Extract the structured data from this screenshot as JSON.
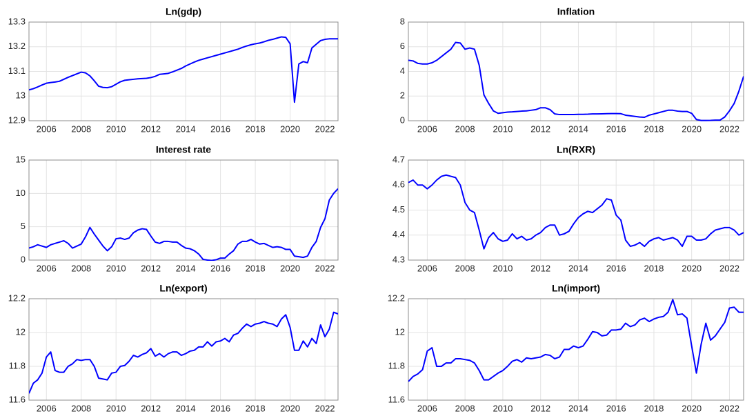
{
  "chart_data": [
    {
      "type": "line",
      "title": "Ln(gdp)",
      "x": [
        2005,
        2005.25,
        2005.5,
        2005.75,
        2006,
        2006.25,
        2006.5,
        2006.75,
        2007,
        2007.25,
        2007.5,
        2007.75,
        2008,
        2008.25,
        2008.5,
        2008.75,
        2009,
        2009.25,
        2009.5,
        2009.75,
        2010,
        2010.25,
        2010.5,
        2010.75,
        2011,
        2011.25,
        2011.5,
        2011.75,
        2012,
        2012.25,
        2012.5,
        2012.75,
        2013,
        2013.25,
        2013.5,
        2013.75,
        2014,
        2014.25,
        2014.5,
        2014.75,
        2015,
        2015.25,
        2015.5,
        2015.75,
        2016,
        2016.25,
        2016.5,
        2016.75,
        2017,
        2017.25,
        2017.5,
        2017.75,
        2018,
        2018.25,
        2018.5,
        2018.75,
        2019,
        2019.25,
        2019.5,
        2019.75,
        2020,
        2020.25,
        2020.5,
        2020.75,
        2021,
        2021.25,
        2021.5,
        2021.75,
        2022,
        2022.25,
        2022.5,
        2022.75
      ],
      "series": [
        {
          "color": "#0000ff",
          "values": [
            13.025,
            13.03,
            13.037,
            13.045,
            13.052,
            13.055,
            13.057,
            13.06,
            13.068,
            13.076,
            13.083,
            13.09,
            13.097,
            13.094,
            13.082,
            13.062,
            13.04,
            13.035,
            13.034,
            13.038,
            13.048,
            13.058,
            13.064,
            13.066,
            13.068,
            13.07,
            13.071,
            13.072,
            13.075,
            13.08,
            13.088,
            13.09,
            13.092,
            13.098,
            13.105,
            13.112,
            13.122,
            13.13,
            13.138,
            13.145,
            13.15,
            13.155,
            13.16,
            13.165,
            13.17,
            13.175,
            13.18,
            13.185,
            13.19,
            13.197,
            13.203,
            13.208,
            13.212,
            13.215,
            13.22,
            13.226,
            13.23,
            13.235,
            13.24,
            13.238,
            13.212,
            12.975,
            13.13,
            13.14,
            13.135,
            13.195,
            13.21,
            13.225,
            13.23,
            13.232,
            13.232,
            13.232
          ]
        }
      ],
      "xlim": [
        2005,
        2022.75
      ],
      "xticks": [
        2006,
        2008,
        2010,
        2012,
        2014,
        2016,
        2018,
        2020,
        2022
      ],
      "ylim": [
        12.9,
        13.3
      ],
      "yticks": [
        12.9,
        13,
        13.1,
        13.2,
        13.3
      ],
      "grid": true
    },
    {
      "type": "line",
      "title": "Inflation",
      "x": [
        2005,
        2005.25,
        2005.5,
        2005.75,
        2006,
        2006.25,
        2006.5,
        2006.75,
        2007,
        2007.25,
        2007.5,
        2007.75,
        2008,
        2008.25,
        2008.5,
        2008.75,
        2009,
        2009.25,
        2009.5,
        2009.75,
        2010,
        2010.25,
        2010.5,
        2010.75,
        2011,
        2011.25,
        2011.5,
        2011.75,
        2012,
        2012.25,
        2012.5,
        2012.75,
        2013,
        2013.25,
        2013.5,
        2013.75,
        2014,
        2014.25,
        2014.5,
        2014.75,
        2015,
        2015.25,
        2015.5,
        2015.75,
        2016,
        2016.25,
        2016.5,
        2016.75,
        2017,
        2017.25,
        2017.5,
        2017.75,
        2018,
        2018.25,
        2018.5,
        2018.75,
        2019,
        2019.25,
        2019.5,
        2019.75,
        2020,
        2020.25,
        2020.5,
        2020.75,
        2021,
        2021.25,
        2021.5,
        2021.75,
        2022,
        2022.25,
        2022.5,
        2022.75
      ],
      "series": [
        {
          "color": "#0000ff",
          "values": [
            4.9,
            4.85,
            4.65,
            4.6,
            4.6,
            4.7,
            4.9,
            5.2,
            5.5,
            5.8,
            6.35,
            6.3,
            5.8,
            5.9,
            5.8,
            4.5,
            2.1,
            1.4,
            0.8,
            0.6,
            0.65,
            0.7,
            0.72,
            0.75,
            0.78,
            0.8,
            0.85,
            0.9,
            1.05,
            1.05,
            0.9,
            0.55,
            0.5,
            0.5,
            0.5,
            0.5,
            0.52,
            0.52,
            0.53,
            0.55,
            0.55,
            0.56,
            0.57,
            0.58,
            0.58,
            0.57,
            0.45,
            0.4,
            0.35,
            0.3,
            0.28,
            0.45,
            0.55,
            0.65,
            0.75,
            0.85,
            0.85,
            0.78,
            0.75,
            0.75,
            0.6,
            0.1,
            0.02,
            0.02,
            0.03,
            0.05,
            0.05,
            0.3,
            0.8,
            1.4,
            2.4,
            3.6
          ]
        }
      ],
      "xlim": [
        2005,
        2022.75
      ],
      "xticks": [
        2006,
        2008,
        2010,
        2012,
        2014,
        2016,
        2018,
        2020,
        2022
      ],
      "ylim": [
        0,
        8
      ],
      "yticks": [
        0,
        2,
        4,
        6,
        8
      ],
      "grid": true
    },
    {
      "type": "line",
      "title": "Interest rate",
      "x": [
        2005,
        2005.25,
        2005.5,
        2005.75,
        2006,
        2006.25,
        2006.5,
        2006.75,
        2007,
        2007.25,
        2007.5,
        2007.75,
        2008,
        2008.25,
        2008.5,
        2008.75,
        2009,
        2009.25,
        2009.5,
        2009.75,
        2010,
        2010.25,
        2010.5,
        2010.75,
        2011,
        2011.25,
        2011.5,
        2011.75,
        2012,
        2012.25,
        2012.5,
        2012.75,
        2013,
        2013.25,
        2013.5,
        2013.75,
        2014,
        2014.25,
        2014.5,
        2014.75,
        2015,
        2015.25,
        2015.5,
        2015.75,
        2016,
        2016.25,
        2016.5,
        2016.75,
        2017,
        2017.25,
        2017.5,
        2017.75,
        2018,
        2018.25,
        2018.5,
        2018.75,
        2019,
        2019.25,
        2019.5,
        2019.75,
        2020,
        2020.25,
        2020.5,
        2020.75,
        2021,
        2021.25,
        2021.5,
        2021.75,
        2022,
        2022.25,
        2022.5,
        2022.75
      ],
      "series": [
        {
          "color": "#0000ff",
          "values": [
            1.8,
            2.0,
            2.3,
            2.1,
            1.9,
            2.3,
            2.5,
            2.7,
            2.9,
            2.5,
            1.8,
            2.1,
            2.4,
            3.5,
            4.9,
            3.9,
            3.0,
            2.1,
            1.4,
            2.0,
            3.2,
            3.3,
            3.1,
            3.3,
            4.1,
            4.5,
            4.7,
            4.6,
            3.6,
            2.7,
            2.5,
            2.8,
            2.8,
            2.7,
            2.7,
            2.2,
            1.8,
            1.7,
            1.4,
            0.9,
            0.1,
            0.0,
            -0.05,
            0.05,
            0.3,
            0.3,
            0.9,
            1.4,
            2.4,
            2.8,
            2.8,
            3.1,
            2.7,
            2.4,
            2.5,
            2.2,
            1.9,
            2.0,
            1.9,
            1.6,
            1.6,
            0.6,
            0.5,
            0.4,
            0.6,
            1.9,
            2.8,
            4.9,
            6.2,
            9.0,
            10.0,
            10.7
          ]
        }
      ],
      "xlim": [
        2005,
        2022.75
      ],
      "xticks": [
        2006,
        2008,
        2010,
        2012,
        2014,
        2016,
        2018,
        2020,
        2022
      ],
      "ylim": [
        0,
        15
      ],
      "yticks": [
        0,
        5,
        10,
        15
      ],
      "grid": true
    },
    {
      "type": "line",
      "title": "Ln(RXR)",
      "x": [
        2005,
        2005.25,
        2005.5,
        2005.75,
        2006,
        2006.25,
        2006.5,
        2006.75,
        2007,
        2007.25,
        2007.5,
        2007.75,
        2008,
        2008.25,
        2008.5,
        2008.75,
        2009,
        2009.25,
        2009.5,
        2009.75,
        2010,
        2010.25,
        2010.5,
        2010.75,
        2011,
        2011.25,
        2011.5,
        2011.75,
        2012,
        2012.25,
        2012.5,
        2012.75,
        2013,
        2013.25,
        2013.5,
        2013.75,
        2014,
        2014.25,
        2014.5,
        2014.75,
        2015,
        2015.25,
        2015.5,
        2015.75,
        2016,
        2016.25,
        2016.5,
        2016.75,
        2017,
        2017.25,
        2017.5,
        2017.75,
        2018,
        2018.25,
        2018.5,
        2018.75,
        2019,
        2019.25,
        2019.5,
        2019.75,
        2020,
        2020.25,
        2020.5,
        2020.75,
        2021,
        2021.25,
        2021.5,
        2021.75,
        2022,
        2022.25,
        2022.5,
        2022.75
      ],
      "series": [
        {
          "color": "#0000ff",
          "values": [
            4.61,
            4.62,
            4.6,
            4.6,
            4.585,
            4.6,
            4.62,
            4.635,
            4.64,
            4.635,
            4.63,
            4.6,
            4.53,
            4.5,
            4.49,
            4.42,
            4.345,
            4.39,
            4.41,
            4.385,
            4.375,
            4.38,
            4.405,
            4.385,
            4.395,
            4.38,
            4.385,
            4.4,
            4.41,
            4.43,
            4.44,
            4.44,
            4.4,
            4.405,
            4.415,
            4.445,
            4.47,
            4.485,
            4.495,
            4.49,
            4.505,
            4.52,
            4.545,
            4.54,
            4.48,
            4.46,
            4.38,
            4.355,
            4.36,
            4.37,
            4.355,
            4.375,
            4.385,
            4.39,
            4.38,
            4.385,
            4.39,
            4.38,
            4.355,
            4.395,
            4.395,
            4.38,
            4.38,
            4.385,
            4.405,
            4.42,
            4.425,
            4.43,
            4.43,
            4.42,
            4.4,
            4.41
          ]
        }
      ],
      "xlim": [
        2005,
        2022.75
      ],
      "xticks": [
        2006,
        2008,
        2010,
        2012,
        2014,
        2016,
        2018,
        2020,
        2022
      ],
      "ylim": [
        4.3,
        4.7
      ],
      "yticks": [
        4.3,
        4.4,
        4.5,
        4.6,
        4.7
      ],
      "grid": true
    },
    {
      "type": "line",
      "title": "Ln(export)",
      "x": [
        2005,
        2005.25,
        2005.5,
        2005.75,
        2006,
        2006.25,
        2006.5,
        2006.75,
        2007,
        2007.25,
        2007.5,
        2007.75,
        2008,
        2008.25,
        2008.5,
        2008.75,
        2009,
        2009.25,
        2009.5,
        2009.75,
        2010,
        2010.25,
        2010.5,
        2010.75,
        2011,
        2011.25,
        2011.5,
        2011.75,
        2012,
        2012.25,
        2012.5,
        2012.75,
        2013,
        2013.25,
        2013.5,
        2013.75,
        2014,
        2014.25,
        2014.5,
        2014.75,
        2015,
        2015.25,
        2015.5,
        2015.75,
        2016,
        2016.25,
        2016.5,
        2016.75,
        2017,
        2017.25,
        2017.5,
        2017.75,
        2018,
        2018.25,
        2018.5,
        2018.75,
        2019,
        2019.25,
        2019.5,
        2019.75,
        2020,
        2020.25,
        2020.5,
        2020.75,
        2021,
        2021.25,
        2021.5,
        2021.75,
        2022,
        2022.25,
        2022.5,
        2022.75
      ],
      "series": [
        {
          "color": "#0000ff",
          "values": [
            11.64,
            11.7,
            11.72,
            11.76,
            11.855,
            11.885,
            11.775,
            11.765,
            11.765,
            11.8,
            11.815,
            11.84,
            11.835,
            11.84,
            11.84,
            11.8,
            11.73,
            11.725,
            11.72,
            11.76,
            11.765,
            11.8,
            11.805,
            11.83,
            11.865,
            11.855,
            11.87,
            11.88,
            11.905,
            11.86,
            11.875,
            11.855,
            11.875,
            11.885,
            11.885,
            11.865,
            11.875,
            11.89,
            11.895,
            11.915,
            11.915,
            11.945,
            11.92,
            11.945,
            11.95,
            11.965,
            11.945,
            11.985,
            11.995,
            12.025,
            12.05,
            12.035,
            12.05,
            12.055,
            12.065,
            12.055,
            12.05,
            12.035,
            12.08,
            12.105,
            12.03,
            11.895,
            11.895,
            11.95,
            11.915,
            11.965,
            11.935,
            12.045,
            11.975,
            12.02,
            12.12,
            12.11
          ]
        }
      ],
      "xlim": [
        2005,
        2022.75
      ],
      "xticks": [
        2006,
        2008,
        2010,
        2012,
        2014,
        2016,
        2018,
        2020,
        2022
      ],
      "ylim": [
        11.6,
        12.2
      ],
      "yticks": [
        11.6,
        11.8,
        12,
        12.2
      ],
      "grid": true
    },
    {
      "type": "line",
      "title": "Ln(import)",
      "x": [
        2005,
        2005.25,
        2005.5,
        2005.75,
        2006,
        2006.25,
        2006.5,
        2006.75,
        2007,
        2007.25,
        2007.5,
        2007.75,
        2008,
        2008.25,
        2008.5,
        2008.75,
        2009,
        2009.25,
        2009.5,
        2009.75,
        2010,
        2010.25,
        2010.5,
        2010.75,
        2011,
        2011.25,
        2011.5,
        2011.75,
        2012,
        2012.25,
        2012.5,
        2012.75,
        2013,
        2013.25,
        2013.5,
        2013.75,
        2014,
        2014.25,
        2014.5,
        2014.75,
        2015,
        2015.25,
        2015.5,
        2015.75,
        2016,
        2016.25,
        2016.5,
        2016.75,
        2017,
        2017.25,
        2017.5,
        2017.75,
        2018,
        2018.25,
        2018.5,
        2018.75,
        2019,
        2019.25,
        2019.5,
        2019.75,
        2020,
        2020.25,
        2020.5,
        2020.75,
        2021,
        2021.25,
        2021.5,
        2021.75,
        2022,
        2022.25,
        2022.5,
        2022.75
      ],
      "series": [
        {
          "color": "#0000ff",
          "values": [
            11.71,
            11.74,
            11.755,
            11.78,
            11.89,
            11.91,
            11.8,
            11.8,
            11.82,
            11.82,
            11.845,
            11.845,
            11.84,
            11.835,
            11.82,
            11.775,
            11.72,
            11.72,
            11.74,
            11.76,
            11.775,
            11.8,
            11.83,
            11.84,
            11.825,
            11.85,
            11.845,
            11.85,
            11.855,
            11.87,
            11.865,
            11.845,
            11.855,
            11.9,
            11.9,
            11.92,
            11.91,
            11.92,
            11.96,
            12.005,
            12.0,
            11.98,
            11.985,
            12.015,
            12.015,
            12.02,
            12.055,
            12.035,
            12.045,
            12.075,
            12.085,
            12.065,
            12.08,
            12.09,
            12.095,
            12.12,
            12.195,
            12.105,
            12.11,
            12.085,
            11.92,
            11.76,
            11.93,
            12.055,
            11.955,
            11.98,
            12.02,
            12.06,
            12.145,
            12.15,
            12.12,
            12.12
          ]
        }
      ],
      "xlim": [
        2005,
        2022.75
      ],
      "xticks": [
        2006,
        2008,
        2010,
        2012,
        2014,
        2016,
        2018,
        2020,
        2022
      ],
      "ylim": [
        11.6,
        12.2
      ],
      "yticks": [
        11.6,
        11.8,
        12,
        12.2
      ],
      "grid": true
    }
  ]
}
